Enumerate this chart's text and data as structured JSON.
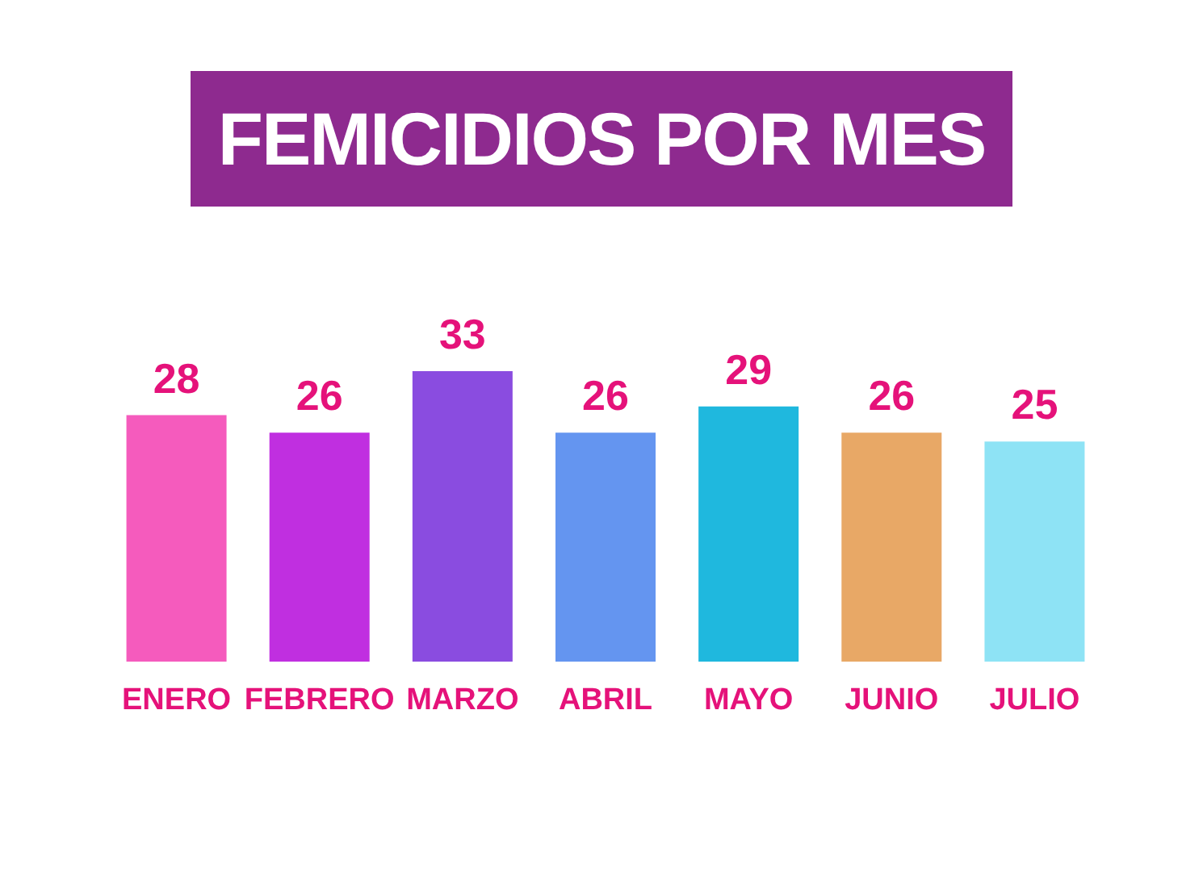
{
  "chart_data": {
    "type": "bar",
    "title": "FEMICIDIOS POR MES",
    "categories": [
      "ENERO",
      "FEBRERO",
      "MARZO",
      "ABRIL",
      "MAYO",
      "JUNIO",
      "JULIO"
    ],
    "values": [
      28,
      26,
      33,
      26,
      29,
      26,
      25
    ],
    "colors": [
      "#f55bbd",
      "#c02fe0",
      "#8a4ce0",
      "#6495f0",
      "#1fb8de",
      "#e8a866",
      "#8ee3f5"
    ],
    "data_labels": true
  }
}
